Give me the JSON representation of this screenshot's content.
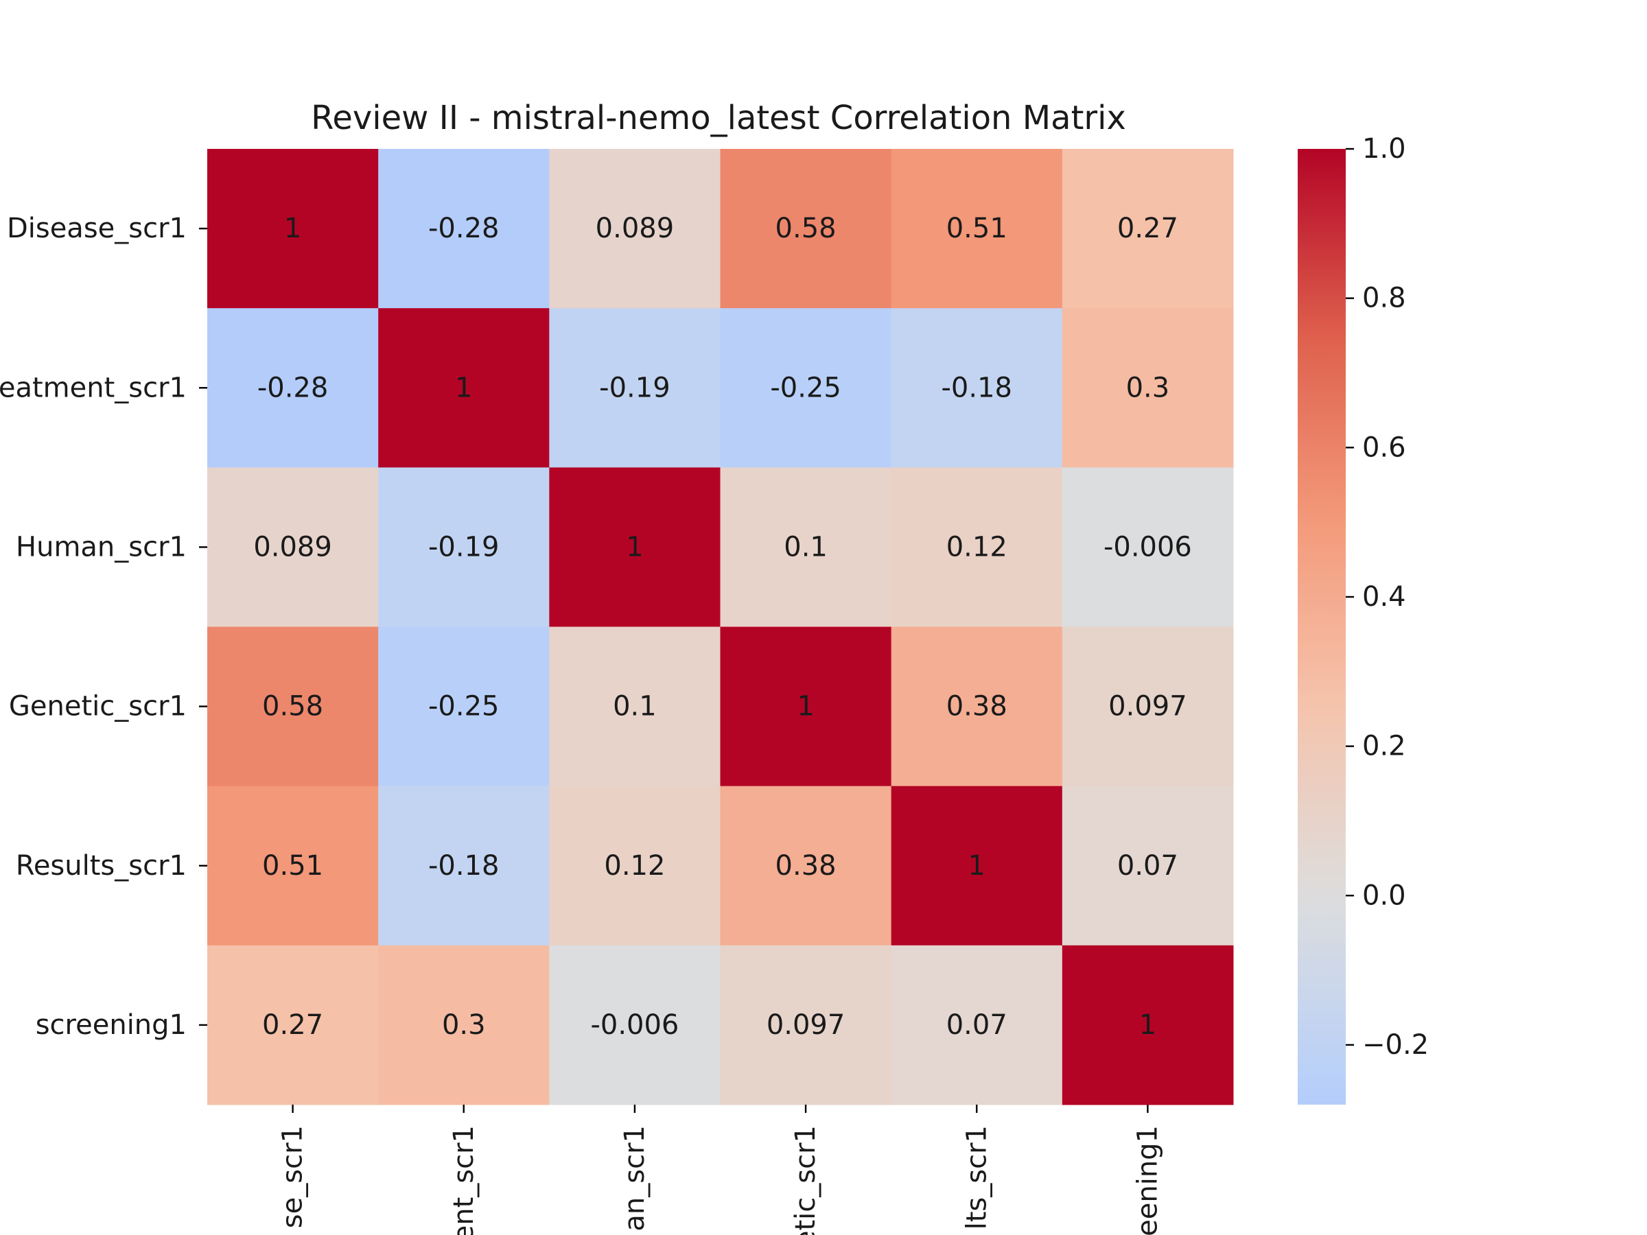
{
  "chart_data": {
    "type": "heatmap",
    "title": "Review II - mistral-nemo_latest Correlation Matrix",
    "row_labels": [
      "Disease_scr1",
      "eatment_scr1",
      "Human_scr1",
      "Genetic_scr1",
      "Results_scr1",
      "screening1"
    ],
    "col_labels": [
      "se_scr1",
      "ent_scr1",
      "an_scr1",
      "etic_scr1",
      "lts_scr1",
      "eening1"
    ],
    "values": [
      [
        1,
        -0.28,
        0.089,
        0.58,
        0.51,
        0.27
      ],
      [
        -0.28,
        1,
        -0.19,
        -0.25,
        -0.18,
        0.3
      ],
      [
        0.089,
        -0.19,
        1,
        0.1,
        0.12,
        -0.006
      ],
      [
        0.58,
        -0.25,
        0.1,
        1,
        0.38,
        0.097
      ],
      [
        0.51,
        -0.18,
        0.12,
        0.38,
        1,
        0.07
      ],
      [
        0.27,
        0.3,
        -0.006,
        0.097,
        0.07,
        1
      ]
    ],
    "annotations": [
      [
        "1",
        "-0.28",
        "0.089",
        "0.58",
        "0.51",
        "0.27"
      ],
      [
        "-0.28",
        "1",
        "-0.19",
        "-0.25",
        "-0.18",
        "0.3"
      ],
      [
        "0.089",
        "-0.19",
        "1",
        "0.1",
        "0.12",
        "-0.006"
      ],
      [
        "0.58",
        "-0.25",
        "0.1",
        "1",
        "0.38",
        "0.097"
      ],
      [
        "0.51",
        "-0.18",
        "0.12",
        "0.38",
        "1",
        "0.07"
      ],
      [
        "0.27",
        "0.3",
        "-0.006",
        "0.097",
        "0.07",
        "1"
      ]
    ],
    "colormap": "coolwarm",
    "colorbar": {
      "vmin": -0.28,
      "vmax": 1.0,
      "center": 0.0,
      "ticks": [
        1.0,
        0.8,
        0.6,
        0.4,
        0.2,
        0.0,
        -0.2
      ],
      "tick_labels": [
        "1.0",
        "0.8",
        "0.6",
        "0.4",
        "0.2",
        "0.0",
        "−0.2"
      ]
    },
    "grid": false,
    "legend_position": "right"
  }
}
